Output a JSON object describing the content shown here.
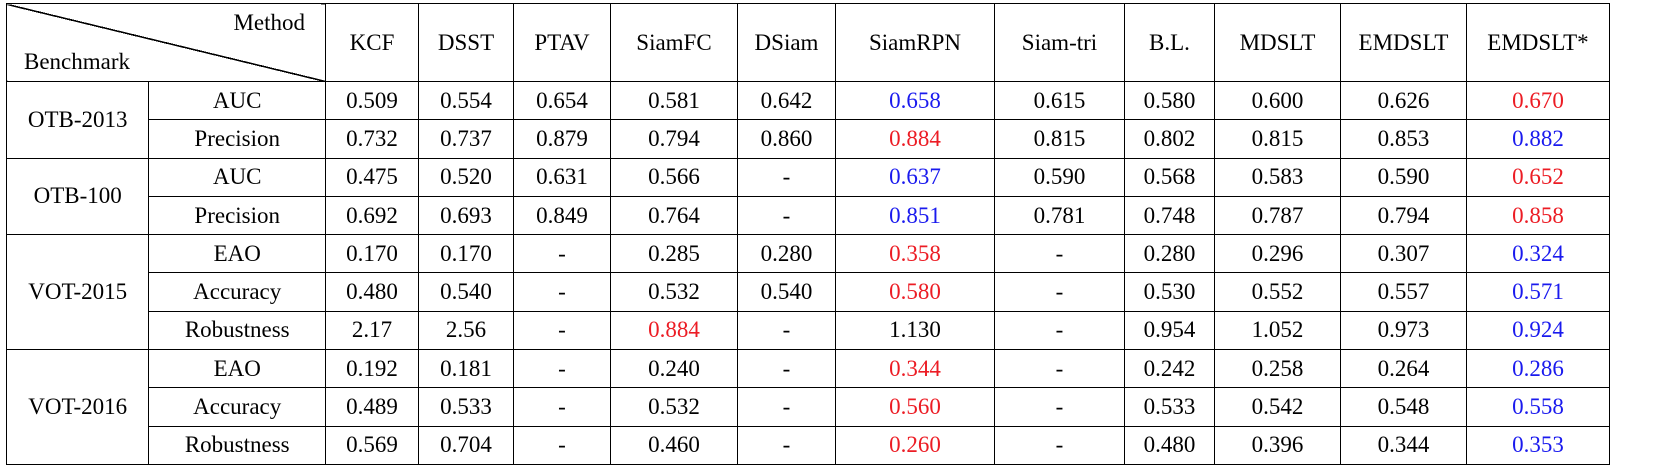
{
  "table": {
    "corner": {
      "top_label": "Method",
      "bottom_label": "Benchmark"
    },
    "columns": [
      "KCF",
      "DSST",
      "PTAV",
      "SiamFC",
      "DSiam",
      "SiamRPN",
      "Siam-tri",
      "B.L.",
      "MDSLT",
      "EMDSLT",
      "EMDSLT*"
    ],
    "colors": {
      "red": "#ec1c24",
      "blue": "#1a1aee",
      "default": "#000000"
    },
    "groups": [
      {
        "benchmark": "OTB-2013",
        "rows": [
          {
            "metric": "AUC",
            "values": [
              "0.509",
              "0.554",
              "0.654",
              "0.581",
              "0.642",
              "0.658",
              "0.615",
              "0.580",
              "0.600",
              "0.626",
              "0.670"
            ],
            "highlights": {
              "5": "blue",
              "10": "red"
            }
          },
          {
            "metric": "Precision",
            "values": [
              "0.732",
              "0.737",
              "0.879",
              "0.794",
              "0.860",
              "0.884",
              "0.815",
              "0.802",
              "0.815",
              "0.853",
              "0.882"
            ],
            "highlights": {
              "5": "red",
              "10": "blue"
            }
          }
        ]
      },
      {
        "benchmark": "OTB-100",
        "rows": [
          {
            "metric": "AUC",
            "values": [
              "0.475",
              "0.520",
              "0.631",
              "0.566",
              "-",
              "0.637",
              "0.590",
              "0.568",
              "0.583",
              "0.590",
              "0.652"
            ],
            "highlights": {
              "5": "blue",
              "10": "red"
            }
          },
          {
            "metric": "Precision",
            "values": [
              "0.692",
              "0.693",
              "0.849",
              "0.764",
              "-",
              "0.851",
              "0.781",
              "0.748",
              "0.787",
              "0.794",
              "0.858"
            ],
            "highlights": {
              "5": "blue",
              "10": "red"
            }
          }
        ]
      },
      {
        "benchmark": "VOT-2015",
        "rows": [
          {
            "metric": "EAO",
            "values": [
              "0.170",
              "0.170",
              "-",
              "0.285",
              "0.280",
              "0.358",
              "-",
              "0.280",
              "0.296",
              "0.307",
              "0.324"
            ],
            "highlights": {
              "5": "red",
              "10": "blue"
            }
          },
          {
            "metric": "Accuracy",
            "values": [
              "0.480",
              "0.540",
              "-",
              "0.532",
              "0.540",
              "0.580",
              "-",
              "0.530",
              "0.552",
              "0.557",
              "0.571"
            ],
            "highlights": {
              "5": "red",
              "10": "blue"
            }
          },
          {
            "metric": "Robustness",
            "values": [
              "2.17",
              "2.56",
              "-",
              "0.884",
              "-",
              "1.130",
              "-",
              "0.954",
              "1.052",
              "0.973",
              "0.924"
            ],
            "highlights": {
              "3": "red",
              "10": "blue"
            }
          }
        ]
      },
      {
        "benchmark": "VOT-2016",
        "rows": [
          {
            "metric": "EAO",
            "values": [
              "0.192",
              "0.181",
              "-",
              "0.240",
              "-",
              "0.344",
              "-",
              "0.242",
              "0.258",
              "0.264",
              "0.286"
            ],
            "highlights": {
              "5": "red",
              "10": "blue"
            }
          },
          {
            "metric": "Accuracy",
            "values": [
              "0.489",
              "0.533",
              "-",
              "0.532",
              "-",
              "0.560",
              "-",
              "0.533",
              "0.542",
              "0.548",
              "0.558"
            ],
            "highlights": {
              "5": "red",
              "10": "blue"
            }
          },
          {
            "metric": "Robustness",
            "values": [
              "0.569",
              "0.704",
              "-",
              "0.460",
              "-",
              "0.260",
              "-",
              "0.480",
              "0.396",
              "0.344",
              "0.353"
            ],
            "highlights": {
              "5": "red",
              "10": "blue"
            }
          }
        ]
      }
    ]
  }
}
